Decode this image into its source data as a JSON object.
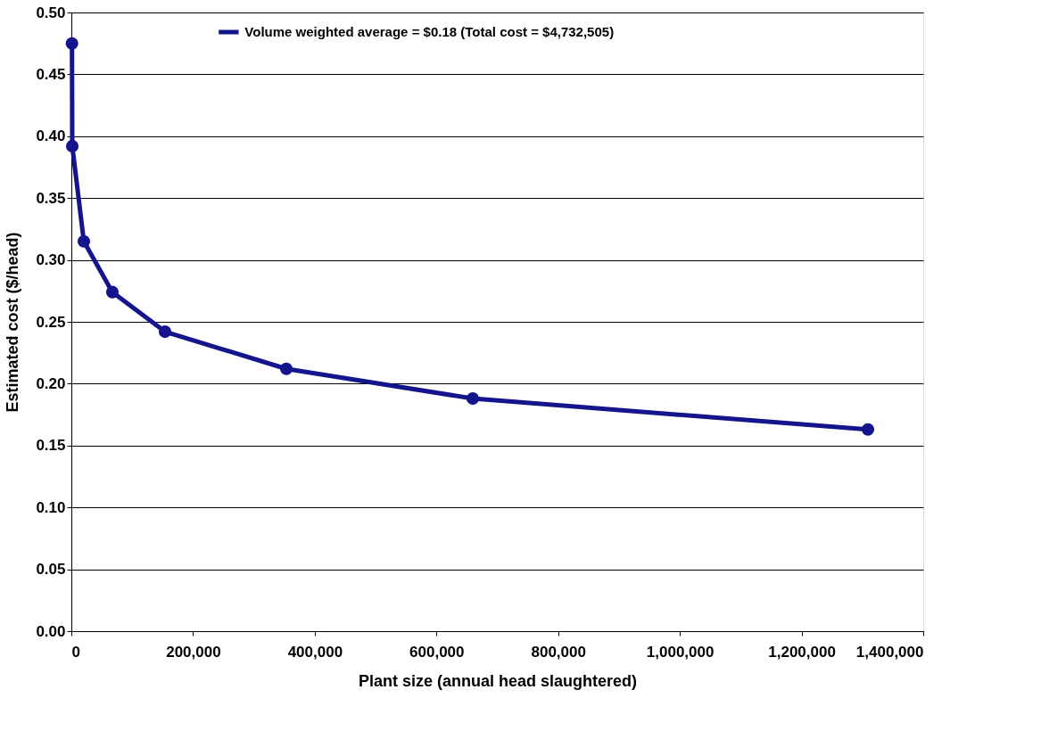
{
  "chart_data": {
    "type": "line",
    "xlabel": "Plant size (annual  head  slaughtered)",
    "ylabel": "Estimated cost  ($/head)",
    "x": [
      1000,
      1500,
      20500,
      67400,
      153900,
      353300,
      659700,
      1309100
    ],
    "series": [
      {
        "name": "Volume weighted average = $0.18 (Total cost = $4,732,505)",
        "color": "#14148c",
        "values": [
          0.475,
          0.392,
          0.315,
          0.274,
          0.242,
          0.212,
          0.188,
          0.163
        ]
      }
    ],
    "xlim": [
      0,
      1400000
    ],
    "xticks": [
      0,
      {
        "value": 200000,
        "label": "200,000"
      },
      {
        "value": 400000,
        "label": "400,000"
      },
      {
        "value": 600000,
        "label": "600,000"
      },
      {
        "value": 800000,
        "label": "800,000"
      },
      {
        "value": 1000000,
        "label": "1,000,000"
      },
      {
        "value": 1200000,
        "label": "1,200,000"
      },
      {
        "value": 1400000,
        "label": "1,400,000"
      }
    ],
    "ylim": [
      0,
      0.5
    ],
    "yticks": [
      {
        "value": 0,
        "label": "0.00"
      },
      {
        "value": 0.05,
        "label": "0.05"
      },
      {
        "value": 0.1,
        "label": "0.10"
      },
      {
        "value": 0.15,
        "label": "0.15"
      },
      {
        "value": 0.2,
        "label": "0.20"
      },
      {
        "value": 0.25,
        "label": "0.25"
      },
      {
        "value": 0.3,
        "label": "0.30"
      },
      {
        "value": 0.35,
        "label": "0.35"
      },
      {
        "value": 0.4,
        "label": "0.40"
      },
      {
        "value": 0.45,
        "label": "0.45"
      },
      {
        "value": 0.5,
        "label": "0.50"
      }
    ],
    "grid": "y",
    "legend": "top",
    "marker": "circle",
    "line_style": "solid"
  }
}
